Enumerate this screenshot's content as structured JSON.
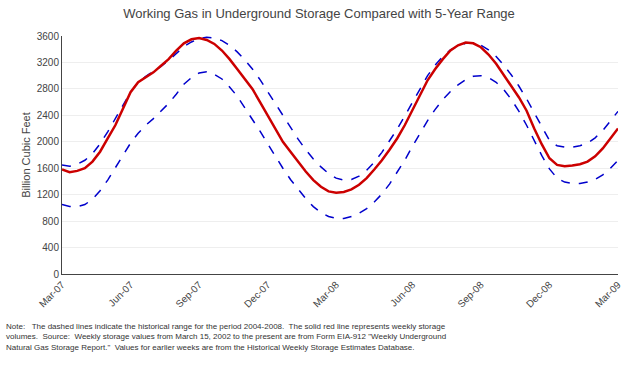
{
  "chart_data": {
    "type": "line",
    "title": "Working Gas in Underground Storage Compared with 5-Year Range",
    "ylabel": "Billion Cubic Feet",
    "annotations": [
      "Note:   The dashed lines indicate the historical range for the period 2004-2008.  The solid red line represents weekly storage\nvolumes.  Source:  Weekly storage values from March 15, 2002 to the present are from Form EIA-912 \"Weekly Underground\nNatural Gas Storage Report.\"  Values for earlier weeks are from the Historical Weekly Storage Estimates Database."
    ],
    "categories": [
      "Mar-07",
      null,
      null,
      null,
      null,
      null,
      null,
      null,
      null,
      "Jun-07",
      null,
      null,
      null,
      null,
      null,
      null,
      null,
      null,
      "Sep-07",
      null,
      null,
      null,
      null,
      null,
      null,
      null,
      null,
      "Dec-07",
      null,
      null,
      null,
      null,
      null,
      null,
      null,
      null,
      "Mar-08",
      null,
      null,
      null,
      null,
      null,
      null,
      null,
      null,
      null,
      "Jun-08",
      null,
      null,
      null,
      null,
      null,
      null,
      null,
      null,
      "Sep-08",
      null,
      null,
      null,
      null,
      null,
      null,
      null,
      null,
      "Dec-08",
      null,
      null,
      null,
      null,
      null,
      null,
      null,
      null,
      "Mar-09"
    ],
    "series": [
      {
        "color": "#0000cc",
        "line_style": "dashed",
        "values": [
          1650,
          1630,
          1660,
          1720,
          1820,
          1970,
          2150,
          2340,
          2550,
          2750,
          2900,
          2990,
          3060,
          3140,
          3230,
          3340,
          3440,
          3510,
          3560,
          3580,
          3570,
          3530,
          3460,
          3360,
          3240,
          3100,
          2940,
          2760,
          2580,
          2390,
          2210,
          2040,
          1880,
          1740,
          1620,
          1520,
          1450,
          1420,
          1430,
          1480,
          1570,
          1690,
          1840,
          2010,
          2190,
          2390,
          2600,
          2810,
          3000,
          3160,
          3290,
          3390,
          3450,
          3490,
          3490,
          3460,
          3390,
          3290,
          3160,
          3010,
          2840,
          2650,
          2440,
          2220,
          2020,
          1940,
          1920,
          1920,
          1940,
          1980,
          2060,
          2170,
          2310,
          2460
        ]
      },
      {
        "color": "#0000cc",
        "line_style": "dashed",
        "values": [
          1050,
          1020,
          1020,
          1050,
          1130,
          1260,
          1420,
          1600,
          1790,
          1980,
          2130,
          2250,
          2350,
          2460,
          2580,
          2720,
          2870,
          2970,
          3040,
          3060,
          3020,
          2950,
          2830,
          2690,
          2520,
          2350,
          2160,
          1970,
          1780,
          1600,
          1430,
          1280,
          1140,
          1020,
          930,
          870,
          840,
          840,
          870,
          920,
          990,
          1090,
          1210,
          1360,
          1530,
          1720,
          1930,
          2130,
          2320,
          2490,
          2640,
          2760,
          2860,
          2940,
          2990,
          3000,
          2970,
          2900,
          2790,
          2640,
          2460,
          2250,
          2020,
          1790,
          1590,
          1450,
          1390,
          1370,
          1370,
          1390,
          1430,
          1500,
          1600,
          1720
        ]
      },
      {
        "color": "#cc0000",
        "line_style": "solid",
        "values": [
          1580,
          1540,
          1560,
          1600,
          1700,
          1850,
          2050,
          2250,
          2500,
          2750,
          2900,
          2980,
          3050,
          3150,
          3250,
          3380,
          3490,
          3550,
          3570,
          3540,
          3480,
          3380,
          3250,
          3100,
          2950,
          2800,
          2600,
          2400,
          2200,
          2000,
          1850,
          1700,
          1550,
          1420,
          1320,
          1250,
          1230,
          1240,
          1280,
          1350,
          1450,
          1580,
          1720,
          1880,
          2050,
          2250,
          2480,
          2720,
          2930,
          3100,
          3250,
          3380,
          3460,
          3500,
          3490,
          3430,
          3320,
          3180,
          3010,
          2840,
          2670,
          2470,
          2200,
          1960,
          1750,
          1650,
          1630,
          1640,
          1660,
          1700,
          1780,
          1900,
          2050,
          2200
        ]
      }
    ],
    "ylim": [
      0,
      3600
    ],
    "yticks": [
      0,
      400,
      800,
      1200,
      1600,
      2000,
      2400,
      2800,
      3200,
      3600
    ],
    "grid": true
  }
}
